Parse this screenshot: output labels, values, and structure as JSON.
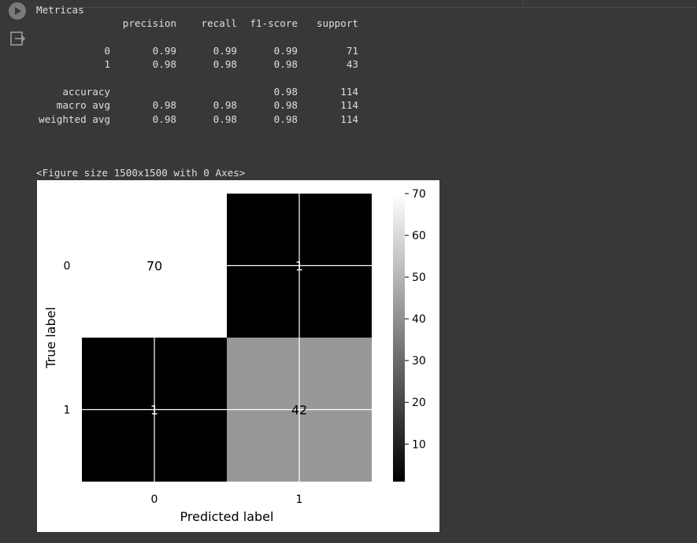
{
  "cell": {
    "stdout_title": "Metricas",
    "report": {
      "headers": [
        "precision",
        "recall",
        "f1-score",
        "support"
      ],
      "rows": [
        {
          "label": "0",
          "precision": "0.99",
          "recall": "0.99",
          "f1": "0.99",
          "support": "71"
        },
        {
          "label": "1",
          "precision": "0.98",
          "recall": "0.98",
          "f1": "0.98",
          "support": "43"
        }
      ],
      "summary": [
        {
          "label": "accuracy",
          "precision": "",
          "recall": "",
          "f1": "0.98",
          "support": "114"
        },
        {
          "label": "macro avg",
          "precision": "0.98",
          "recall": "0.98",
          "f1": "0.98",
          "support": "114"
        },
        {
          "label": "weighted avg",
          "precision": "0.98",
          "recall": "0.98",
          "f1": "0.98",
          "support": "114"
        }
      ]
    },
    "figure_repr": "<Figure size 1500x1500 with 0 Axes>"
  },
  "chart_data": {
    "type": "heatmap",
    "colormap": "gray",
    "x_categories": [
      "0",
      "1"
    ],
    "y_categories": [
      "0",
      "1"
    ],
    "xlabel": "Predicted label",
    "ylabel": "True label",
    "matrix": [
      [
        70,
        1
      ],
      [
        1,
        42
      ]
    ],
    "cell_labels": [
      [
        "70",
        "1"
      ],
      [
        "1",
        "42"
      ]
    ],
    "colorbar": {
      "ticks": [
        10,
        20,
        30,
        40,
        50,
        60,
        70
      ],
      "vmin": 1,
      "vmax": 70,
      "position": "right"
    },
    "grid": true
  }
}
